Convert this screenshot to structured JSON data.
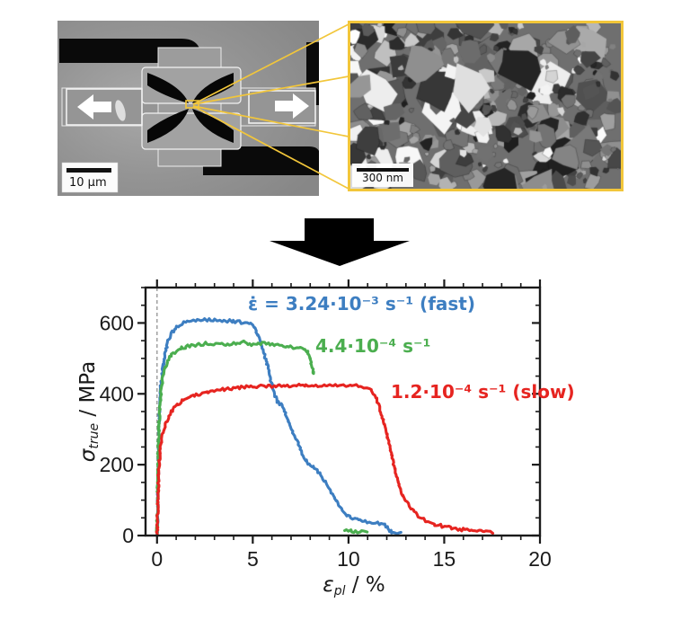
{
  "figure": {
    "accent_yellow": "#F2C63A",
    "panels": {
      "sem": {
        "scale_bar_label": "10 µm",
        "description": "SEM overview of in-situ micro tensile test chip with pull arrows"
      },
      "tem": {
        "scale_bar_label": "300 nm",
        "frame_color": "#F2C63A",
        "description": "TEM micrograph of nanocrystalline grain structure"
      }
    }
  },
  "chart_data": {
    "type": "line",
    "title": "",
    "xlabel": {
      "symbol": "ε",
      "sub": "pl",
      "unit": " / %"
    },
    "ylabel": {
      "symbol": "σ",
      "sub": "true",
      "unit": " / MPa"
    },
    "xlim": [
      -0.6,
      20
    ],
    "ylim": [
      0,
      700
    ],
    "x_ticks": [
      0,
      5,
      10,
      15,
      20
    ],
    "x_minor_step": 1,
    "y_ticks": [
      0,
      200,
      400,
      600
    ],
    "y_minor_step": 50,
    "guide_line_x": 0,
    "axis_color": "#1a1a1a",
    "grid": false,
    "legend_position": "inline-labels",
    "series": [
      {
        "name": "fast",
        "label": "ε̇ = 3.24·10⁻³ s⁻¹ (fast)",
        "color": "#3D7EC1",
        "segments": [
          [
            [
              0,
              0
            ],
            [
              0.04,
              90
            ],
            [
              0.07,
              200
            ],
            [
              0.1,
              290
            ],
            [
              0.14,
              360
            ],
            [
              0.2,
              420
            ],
            [
              0.28,
              465
            ],
            [
              0.4,
              510
            ],
            [
              0.55,
              545
            ],
            [
              0.7,
              565
            ],
            [
              0.9,
              582
            ],
            [
              1.1,
              592
            ],
            [
              1.4,
              600
            ],
            [
              1.8,
              605
            ],
            [
              2.3,
              608
            ],
            [
              2.9,
              609
            ],
            [
              3.5,
              607
            ],
            [
              4.1,
              604
            ],
            [
              4.6,
              600
            ],
            [
              4.9,
              596
            ],
            [
              5.1,
              588
            ],
            [
              5.3,
              562
            ],
            [
              5.5,
              530
            ],
            [
              5.7,
              495
            ],
            [
              5.9,
              450
            ],
            [
              6.05,
              412
            ],
            [
              6.2,
              388
            ],
            [
              6.35,
              376
            ],
            [
              6.55,
              366
            ],
            [
              6.7,
              345
            ],
            [
              6.9,
              315
            ],
            [
              7.1,
              288
            ],
            [
              7.35,
              260
            ],
            [
              7.6,
              228
            ],
            [
              7.85,
              205
            ],
            [
              8.1,
              195
            ],
            [
              8.35,
              182
            ],
            [
              8.6,
              168
            ],
            [
              8.85,
              148
            ],
            [
              9.05,
              128
            ],
            [
              9.25,
              108
            ],
            [
              9.5,
              86
            ],
            [
              9.7,
              68
            ],
            [
              9.95,
              55
            ],
            [
              10.3,
              47
            ],
            [
              10.7,
              40
            ],
            [
              11.1,
              37
            ],
            [
              11.5,
              34
            ],
            [
              11.9,
              30
            ],
            [
              12.05,
              22
            ],
            [
              12.2,
              12
            ],
            [
              12.45,
              9
            ],
            [
              12.75,
              7
            ]
          ]
        ]
      },
      {
        "name": "mid",
        "label": "4.4·10⁻⁴ s⁻¹",
        "color": "#4BAE4F",
        "segments": [
          [
            [
              0,
              0
            ],
            [
              0.03,
              120
            ],
            [
              0.06,
              230
            ],
            [
              0.09,
              300
            ],
            [
              0.13,
              355
            ],
            [
              0.2,
              405
            ],
            [
              0.3,
              445
            ],
            [
              0.42,
              472
            ],
            [
              0.58,
              494
            ],
            [
              0.78,
              510
            ],
            [
              1.0,
              521
            ],
            [
              1.3,
              529
            ],
            [
              1.7,
              535
            ],
            [
              2.1,
              539
            ],
            [
              2.5,
              542
            ],
            [
              2.9,
              539
            ],
            [
              3.3,
              543
            ],
            [
              3.7,
              538
            ],
            [
              4.1,
              542
            ],
            [
              4.5,
              545
            ],
            [
              4.9,
              539
            ],
            [
              5.3,
              542
            ],
            [
              5.7,
              543
            ],
            [
              6.1,
              539
            ],
            [
              6.5,
              537
            ],
            [
              6.9,
              533
            ],
            [
              7.2,
              531
            ],
            [
              7.5,
              528
            ],
            [
              7.8,
              522
            ],
            [
              7.95,
              508
            ],
            [
              8.05,
              488
            ],
            [
              8.15,
              468
            ],
            [
              8.2,
              455
            ]
          ],
          [
            [
              9.8,
              14
            ],
            [
              10.2,
              12
            ],
            [
              10.6,
              11
            ],
            [
              11.0,
              10
            ]
          ]
        ]
      },
      {
        "name": "slow",
        "label": "1.2·10⁻⁴ s⁻¹ (slow)",
        "color": "#E62420",
        "segments": [
          [
            [
              0,
              0
            ],
            [
              0.04,
              80
            ],
            [
              0.07,
              150
            ],
            [
              0.1,
              195
            ],
            [
              0.15,
              230
            ],
            [
              0.22,
              262
            ],
            [
              0.32,
              290
            ],
            [
              0.45,
              315
            ],
            [
              0.62,
              338
            ],
            [
              0.85,
              357
            ],
            [
              1.1,
              371
            ],
            [
              1.4,
              382
            ],
            [
              1.8,
              392
            ],
            [
              2.2,
              399
            ],
            [
              2.7,
              405
            ],
            [
              3.2,
              410
            ],
            [
              3.8,
              415
            ],
            [
              4.4,
              418
            ],
            [
              5.0,
              420
            ],
            [
              5.6,
              422
            ],
            [
              6.2,
              421
            ],
            [
              6.8,
              423
            ],
            [
              7.4,
              424
            ],
            [
              8.0,
              425
            ],
            [
              8.6,
              424
            ],
            [
              9.2,
              423
            ],
            [
              9.8,
              424
            ],
            [
              10.4,
              424
            ],
            [
              10.8,
              420
            ],
            [
              11.1,
              413
            ],
            [
              11.35,
              398
            ],
            [
              11.55,
              375
            ],
            [
              11.75,
              340
            ],
            [
              11.95,
              300
            ],
            [
              12.15,
              255
            ],
            [
              12.35,
              205
            ],
            [
              12.55,
              160
            ],
            [
              12.75,
              125
            ],
            [
              12.95,
              100
            ],
            [
              13.2,
              80
            ],
            [
              13.5,
              62
            ],
            [
              13.8,
              50
            ],
            [
              14.2,
              38
            ],
            [
              14.7,
              29
            ],
            [
              15.2,
              23
            ],
            [
              15.8,
              18
            ],
            [
              16.4,
              14
            ],
            [
              17.0,
              11
            ],
            [
              17.5,
              9
            ]
          ]
        ]
      }
    ]
  }
}
